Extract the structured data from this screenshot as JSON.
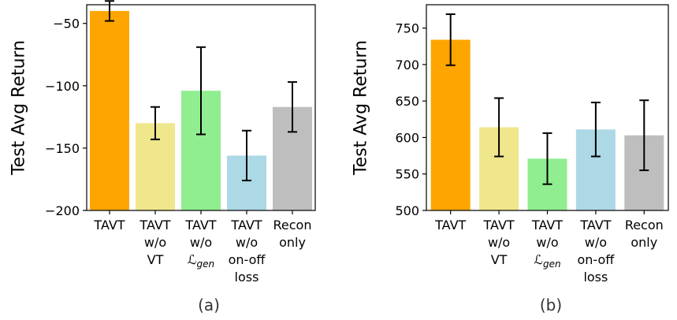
{
  "chart_data": [
    {
      "type": "bar",
      "caption": "(a)",
      "ylabel": "Test Avg Return",
      "ylim": [
        -200,
        -35
      ],
      "yticks": [
        -200,
        -150,
        -100,
        -50
      ],
      "yticklabels": [
        "−200",
        "−150",
        "−100",
        "−50"
      ],
      "categories": [
        {
          "lines": [
            "TAVT"
          ]
        },
        {
          "lines": [
            "TAVT",
            "w/o",
            "VT"
          ]
        },
        {
          "lines": [
            "TAVT",
            "w/o",
            "ℒgen"
          ],
          "math": true
        },
        {
          "lines": [
            "TAVT",
            "w/o",
            "on-off",
            "loss"
          ]
        },
        {
          "lines": [
            "Recon",
            "only"
          ]
        }
      ],
      "values": [
        -40,
        -130,
        -104,
        -156,
        -117
      ],
      "errors": [
        8,
        13,
        35,
        20,
        20
      ],
      "colors": [
        "#FFA500",
        "#F0E68C",
        "#90EE90",
        "#ADD8E6",
        "#BEBEBE"
      ]
    },
    {
      "type": "bar",
      "caption": "(b)",
      "ylabel": "Test Avg Return",
      "ylim": [
        500,
        782
      ],
      "yticks": [
        500,
        550,
        600,
        650,
        700,
        750
      ],
      "yticklabels": [
        "500",
        "550",
        "600",
        "650",
        "700",
        "750"
      ],
      "categories": [
        {
          "lines": [
            "TAVT"
          ]
        },
        {
          "lines": [
            "TAVT",
            "w/o",
            "VT"
          ]
        },
        {
          "lines": [
            "TAVT",
            "w/o",
            "ℒgen"
          ],
          "math": true
        },
        {
          "lines": [
            "TAVT",
            "w/o",
            "on-off",
            "loss"
          ]
        },
        {
          "lines": [
            "Recon",
            "only"
          ]
        }
      ],
      "values": [
        734,
        614,
        571,
        611,
        603
      ],
      "errors": [
        35,
        40,
        35,
        37,
        48
      ],
      "colors": [
        "#FFA500",
        "#F0E68C",
        "#90EE90",
        "#ADD8E6",
        "#BEBEBE"
      ]
    }
  ]
}
